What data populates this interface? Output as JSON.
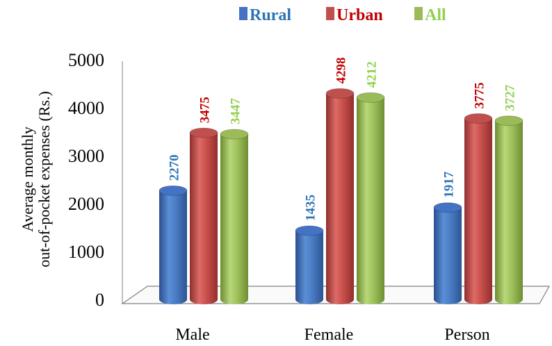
{
  "chart_data": {
    "type": "bar",
    "categories": [
      "Male",
      "Female",
      "Person"
    ],
    "series": [
      {
        "name": "Rural",
        "values": [
          2270,
          1435,
          1917
        ],
        "color": "#4472C4",
        "label_color": "#2E75B6"
      },
      {
        "name": "Urban",
        "values": [
          3475,
          4298,
          3775
        ],
        "color": "#C0504D",
        "label_color": "#C00000"
      },
      {
        "name": "All",
        "values": [
          3447,
          4212,
          3727
        ],
        "color": "#9BBB59",
        "label_color": "#92D050"
      }
    ],
    "ylabel": [
      "Average monthly",
      "out-of-pocket expenses (Rs.)"
    ],
    "ylim": [
      0,
      5000
    ],
    "yticks": [
      0,
      1000,
      2000,
      3000,
      4000,
      5000
    ],
    "legend_position": "top",
    "grid": false,
    "style": "3d-cylinder"
  }
}
